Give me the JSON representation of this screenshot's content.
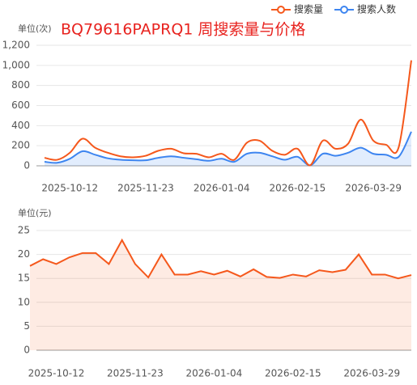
{
  "chart_data": [
    {
      "type": "line",
      "title": "BQ79616PAPRQ1 周搜索量与价格",
      "ylabel": "单位(次)",
      "legend": "top-right",
      "grid": true,
      "categories": [
        null,
        null,
        "2025-10-12",
        null,
        null,
        null,
        null,
        null,
        "2025-11-23",
        null,
        null,
        null,
        null,
        null,
        "2026-01-04",
        null,
        null,
        null,
        null,
        null,
        "2026-02-15",
        null,
        null,
        null,
        null,
        null,
        "2026-03-29",
        null,
        null,
        null
      ],
      "ylim": [
        0,
        1200
      ],
      "yticks": [
        0,
        200,
        400,
        600,
        800,
        {
          "value": 1000,
          "label": "1,000"
        },
        {
          "value": 1200,
          "label": "1,200"
        }
      ],
      "series": [
        {
          "name": "搜索量",
          "color": "#f5581c",
          "values": [
            80,
            60,
            130,
            270,
            180,
            130,
            95,
            85,
            100,
            150,
            170,
            125,
            120,
            85,
            120,
            60,
            230,
            250,
            150,
            110,
            170,
            5,
            250,
            170,
            220,
            460,
            250,
            210,
            185,
            1050
          ]
        },
        {
          "name": "搜索人数",
          "color": "#3d85f0",
          "values": [
            40,
            30,
            70,
            145,
            110,
            75,
            60,
            55,
            55,
            80,
            95,
            80,
            65,
            50,
            70,
            40,
            120,
            130,
            95,
            60,
            90,
            5,
            120,
            100,
            130,
            180,
            120,
            110,
            90,
            340
          ]
        }
      ]
    },
    {
      "type": "area",
      "ylabel": "单位(元)",
      "grid": true,
      "color": "#f5581c",
      "categories": [
        null,
        null,
        "2025-10-12",
        null,
        null,
        null,
        null,
        null,
        "2025-11-23",
        null,
        null,
        null,
        null,
        null,
        "2026-01-04",
        null,
        null,
        null,
        null,
        null,
        "2026-02-15",
        null,
        null,
        null,
        null,
        null,
        "2026-03-29",
        null,
        null,
        null
      ],
      "ylim": [
        0,
        25
      ],
      "yticks": [
        0,
        5,
        10,
        15,
        20,
        25
      ],
      "values": [
        17.6,
        19,
        18,
        19.4,
        20.3,
        20.3,
        18,
        23,
        18,
        15.2,
        20,
        15.8,
        15.8,
        16.5,
        15.8,
        16.6,
        15.4,
        16.9,
        15.3,
        15.1,
        15.8,
        15.4,
        16.7,
        16.3,
        16.8,
        20,
        15.8,
        15.8,
        15,
        15.7
      ]
    }
  ]
}
